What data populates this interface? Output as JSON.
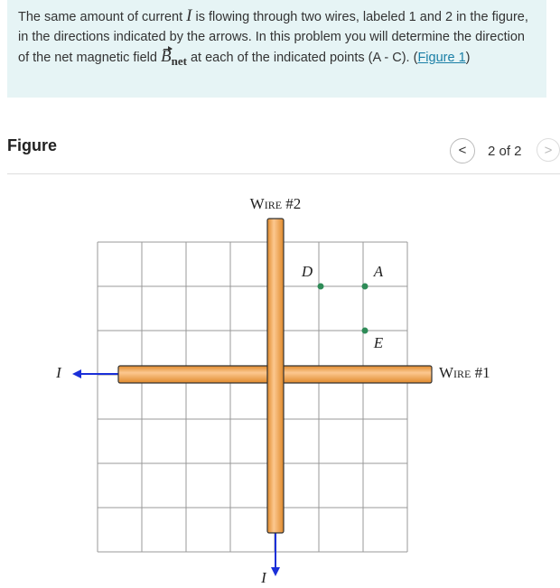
{
  "intro": {
    "before_current": "The same amount of current ",
    "current_symbol": "I",
    "after_current": " is flowing through two wires, labeled 1 and 2 in the figure, in the directions indicated by the arrows. In this problem you will determine the direction of the net magnetic field ",
    "field_symbol": "B",
    "field_subscript": "net",
    "after_field": " at each of the indicated points (A - C).  (",
    "link": "Figure 1",
    "closing": ")"
  },
  "figure_panel": {
    "title": "Figure",
    "prev": "<",
    "pager": "2 of 2",
    "next": ">"
  },
  "diagram": {
    "wire2_label": "Wire #2",
    "wire1_label": "Wire #1",
    "current_left": "I",
    "current_bottom": "I",
    "points": [
      {
        "label": "D"
      },
      {
        "label": "A"
      },
      {
        "label": "E"
      }
    ]
  }
}
